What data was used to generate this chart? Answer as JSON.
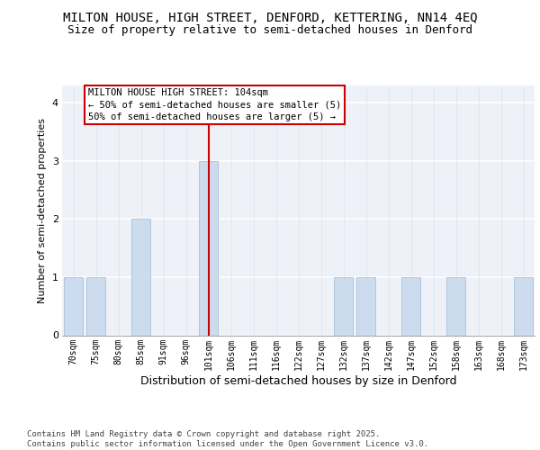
{
  "title": "MILTON HOUSE, HIGH STREET, DENFORD, KETTERING, NN14 4EQ",
  "subtitle": "Size of property relative to semi-detached houses in Denford",
  "xlabel": "Distribution of semi-detached houses by size in Denford",
  "ylabel": "Number of semi-detached properties",
  "categories": [
    "70sqm",
    "75sqm",
    "80sqm",
    "85sqm",
    "91sqm",
    "96sqm",
    "101sqm",
    "106sqm",
    "111sqm",
    "116sqm",
    "122sqm",
    "127sqm",
    "132sqm",
    "137sqm",
    "142sqm",
    "147sqm",
    "152sqm",
    "158sqm",
    "163sqm",
    "168sqm",
    "173sqm"
  ],
  "values": [
    1,
    1,
    0,
    2,
    0,
    0,
    3,
    0,
    0,
    0,
    0,
    0,
    1,
    1,
    0,
    1,
    0,
    1,
    0,
    0,
    1
  ],
  "bar_color": "#ccdcee",
  "bar_edge_color": "#a8c0dc",
  "vline_x_index": 6,
  "vline_color": "#cc0000",
  "annotation_text": "MILTON HOUSE HIGH STREET: 104sqm\n← 50% of semi-detached houses are smaller (5)\n50% of semi-detached houses are larger (5) →",
  "ylim": [
    0,
    4.3
  ],
  "yticks": [
    0,
    1,
    2,
    3,
    4
  ],
  "plot_bg_color": "#eef2f8",
  "grid_color": "#ffffff",
  "footer": "Contains HM Land Registry data © Crown copyright and database right 2025.\nContains public sector information licensed under the Open Government Licence v3.0.",
  "title_fontsize": 10,
  "subtitle_fontsize": 9,
  "xlabel_fontsize": 9,
  "ylabel_fontsize": 8,
  "tick_fontsize": 7,
  "annotation_fontsize": 7.5,
  "footer_fontsize": 6.5
}
